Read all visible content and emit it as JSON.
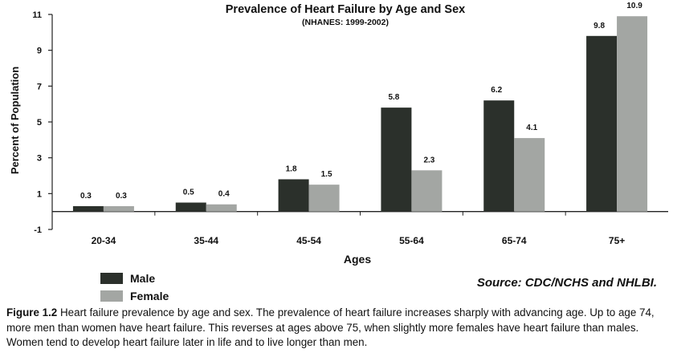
{
  "chart_data": {
    "type": "bar",
    "title": "Prevalence of Heart Failure by Age and Sex",
    "subtitle": "(NHANES: 1999-2002)",
    "xlabel": "Ages",
    "ylabel": "Percent of Population",
    "categories": [
      "20-34",
      "35-44",
      "45-54",
      "55-64",
      "65-74",
      "75+"
    ],
    "series": [
      {
        "name": "Male",
        "values": [
          0.3,
          0.5,
          1.8,
          5.8,
          6.2,
          9.8
        ],
        "color": "#2b302b"
      },
      {
        "name": "Female",
        "values": [
          0.3,
          0.4,
          1.5,
          2.3,
          4.1,
          10.9
        ],
        "color": "#a3a6a3"
      }
    ],
    "data_labels": [
      [
        "0.3",
        "0.5",
        "1.8",
        "5.8",
        "6.2",
        "9.8"
      ],
      [
        "0.3",
        "0.4",
        "1.5",
        "2.3",
        "4.1",
        "10.9"
      ]
    ],
    "ylim": [
      -1,
      11
    ],
    "yticks": [
      -1,
      1,
      3,
      5,
      7,
      9,
      11
    ],
    "ytick_labels": [
      "-1",
      "1",
      "3",
      "5",
      "7",
      "9",
      "11"
    ],
    "grid": false,
    "legend_position": "bottom-left"
  },
  "source_text": "Source: CDC/NCHS and NHLBI.",
  "caption": {
    "label": "Figure 1.2",
    "text": "Heart failure prevalence by age and sex. The prevalence of heart failure increases sharply with advancing age. Up to age 74, more men than women have heart failure. This reverses at ages above 75, when slightly more females have heart failure than males. Women tend to develop heart failure later in life and to live longer than men."
  }
}
